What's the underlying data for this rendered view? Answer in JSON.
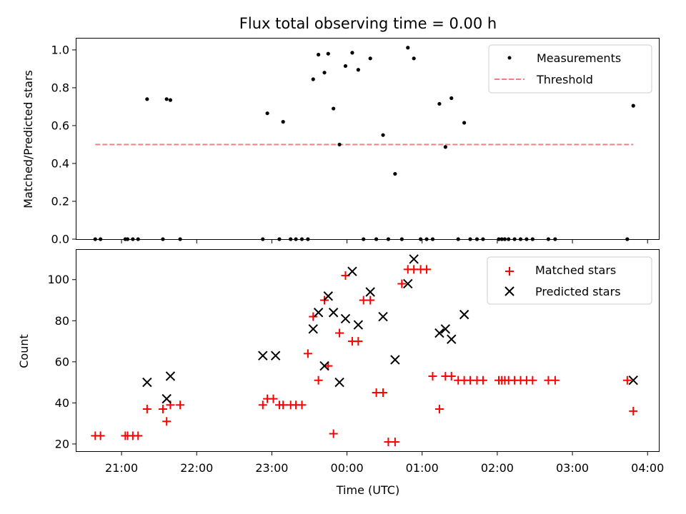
{
  "chart_data": [
    {
      "type": "scatter",
      "title": "Flux total observing time = 0.00 h",
      "xlabel": "",
      "ylabel": "Matched/Predicted stars",
      "ylim": [
        0,
        1.06
      ],
      "yticks": [
        0.0,
        0.2,
        0.4,
        0.6,
        0.8,
        1.0
      ],
      "ytick_labels": [
        "0.0",
        "0.2",
        "0.4",
        "0.6",
        "0.8",
        "1.0"
      ],
      "legend_position": "top-right",
      "series": [
        {
          "name": "Measurements",
          "color": "#000000",
          "marker": "dot",
          "x_hours": [
            -3.35,
            -3.28,
            -2.95,
            -2.92,
            -2.85,
            -2.78,
            -2.66,
            -2.45,
            -2.4,
            -2.35,
            -2.22,
            -1.12,
            -1.06,
            -0.9,
            -0.85,
            -0.75,
            -0.68,
            -0.6,
            -0.52,
            -0.45,
            -0.38,
            -0.3,
            -0.25,
            -0.18,
            -0.1,
            -0.02,
            0.07,
            0.15,
            0.22,
            0.31,
            0.39,
            0.48,
            0.55,
            0.64,
            0.73,
            0.81,
            0.89,
            0.98,
            1.06,
            1.14,
            1.23,
            1.31,
            1.39,
            1.48,
            1.56,
            1.64,
            1.73,
            1.81,
            2.02,
            2.06,
            2.1,
            2.15,
            2.23,
            2.31,
            2.39,
            2.47,
            2.68,
            2.77,
            3.73,
            3.81
          ],
          "y": [
            0,
            0,
            0,
            0,
            0,
            0,
            0.74,
            0,
            0.74,
            0.735,
            0,
            0,
            0.665,
            0,
            0.62,
            0,
            0,
            0,
            0,
            0.845,
            0.975,
            0.88,
            0.98,
            0.69,
            0.5,
            0.915,
            0.985,
            0.895,
            0,
            0.955,
            0,
            0.55,
            0,
            0.345,
            0,
            1.012,
            0.955,
            0,
            0,
            0,
            0.715,
            0.487,
            0.745,
            0,
            0.615,
            0,
            0,
            0,
            0,
            0,
            0,
            0,
            0,
            0,
            0,
            0,
            0,
            0,
            0,
            0.705
          ]
        },
        {
          "name": "Threshold",
          "color": "#f08080",
          "style": "dashed",
          "x_hours": [
            -3.35,
            3.81
          ],
          "y": [
            0.5,
            0.5
          ]
        }
      ]
    },
    {
      "type": "scatter",
      "title": "",
      "xlabel": "Time (UTC)",
      "ylabel": "Count",
      "ylim": [
        16.5,
        114.5
      ],
      "yticks": [
        20,
        40,
        60,
        80,
        100
      ],
      "ytick_labels": [
        "20",
        "40",
        "60",
        "80",
        "100"
      ],
      "x_range_hours": [
        -3.6,
        4.15
      ],
      "x_ticks_hours": [
        -3,
        -2,
        -1,
        0,
        1,
        2,
        3,
        4
      ],
      "x_tick_labels": [
        "21:00",
        "22:00",
        "23:00",
        "00:00",
        "01:00",
        "02:00",
        "03:00",
        "04:00"
      ],
      "legend_position": "top-right",
      "series": [
        {
          "name": "Matched stars",
          "color": "#ff0000",
          "marker": "plus",
          "x_hours": [
            -3.35,
            -3.28,
            -2.95,
            -2.92,
            -2.85,
            -2.78,
            -2.66,
            -2.45,
            -2.4,
            -2.35,
            -2.22,
            -1.12,
            -1.06,
            -0.98,
            -0.9,
            -0.85,
            -0.75,
            -0.68,
            -0.6,
            -0.52,
            -0.45,
            -0.38,
            -0.3,
            -0.25,
            -0.18,
            -0.1,
            -0.02,
            0.07,
            0.15,
            0.22,
            0.31,
            0.39,
            0.48,
            0.55,
            0.64,
            0.73,
            0.81,
            0.89,
            0.98,
            1.06,
            1.14,
            1.23,
            1.31,
            1.39,
            1.48,
            1.56,
            1.64,
            1.73,
            1.81,
            2.02,
            2.06,
            2.1,
            2.15,
            2.23,
            2.31,
            2.39,
            2.47,
            2.68,
            2.77,
            3.73,
            3.81
          ],
          "y": [
            24,
            24,
            24,
            24,
            24,
            24,
            37,
            37,
            31,
            39,
            39,
            39,
            42,
            42,
            39,
            39,
            39,
            39,
            39,
            64,
            82,
            51,
            90,
            58,
            25,
            74,
            102,
            70,
            70,
            90,
            90,
            45,
            45,
            21,
            21,
            98,
            105,
            105,
            105,
            105,
            53,
            37,
            53,
            53,
            51,
            51,
            51,
            51,
            51,
            51,
            51,
            51,
            51,
            51,
            51,
            51,
            51,
            51,
            51,
            51,
            36
          ]
        },
        {
          "name": "Predicted stars",
          "color": "#000000",
          "marker": "x",
          "x_hours": [
            -2.66,
            -2.4,
            -2.35,
            -1.12,
            -0.95,
            -0.45,
            -0.38,
            -0.3,
            -0.25,
            -0.18,
            -0.1,
            -0.02,
            0.07,
            0.15,
            0.31,
            0.48,
            0.64,
            0.81,
            0.89,
            1.23,
            1.31,
            1.39,
            1.56,
            3.81
          ],
          "y": [
            50,
            42,
            53,
            63,
            63,
            76,
            84,
            58,
            92,
            84,
            50,
            81,
            104,
            78,
            94,
            82,
            61,
            98,
            110,
            74,
            76,
            71,
            83,
            51
          ]
        }
      ]
    }
  ]
}
